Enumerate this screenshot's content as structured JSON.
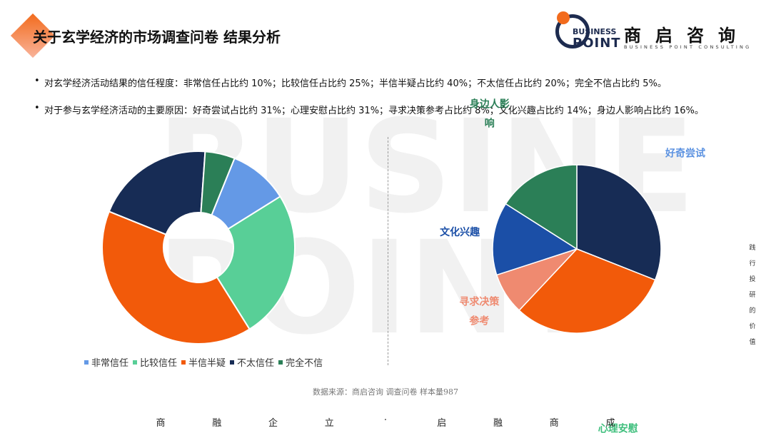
{
  "header": {
    "title": "关于玄学经济的市场调查问卷 结果分析"
  },
  "logo": {
    "business": "BUSINESS",
    "point": "POINT",
    "cn": "商启咨询",
    "en": "BUSINESS POINT CONSULTING"
  },
  "watermark": {
    "line1": "BUSINE",
    "line2": "POINT"
  },
  "bullets": [
    "对玄学经济活动结果的信任程度：非常信任占比约 10%；比较信任占比约 25%；半信半疑占比约 40%；不太信任占比约 20%；完全不信占比约 5%。",
    "对于参与玄学经济活动的主要原因：好奇尝试占比约 31%；心理安慰占比约 31%；寻求决策参考占比约 8%；文化兴趣占比约 14%；身边人影响占比约 16%。"
  ],
  "chart_data": [
    {
      "type": "pie",
      "variant": "donut",
      "title": "",
      "categories": [
        "非常信任",
        "比较信任",
        "半信半疑",
        "不太信任",
        "完全不信"
      ],
      "values": [
        10,
        25,
        40,
        20,
        5
      ],
      "colors": [
        "#6499e6",
        "#58cf97",
        "#f25a0a",
        "#172c55",
        "#2b7f57"
      ],
      "legend": "bottom"
    },
    {
      "type": "pie",
      "title": "",
      "categories": [
        "好奇尝试",
        "心理安慰",
        "寻求决策参考",
        "文化兴趣",
        "身边人影响"
      ],
      "labels": [
        "好奇尝试",
        "心理安慰",
        "寻求决策\n参考",
        "文化兴趣",
        "身边人影\n响"
      ],
      "values": [
        31,
        31,
        8,
        14,
        16
      ],
      "colors": [
        "#172c55",
        "#f25a0a",
        "#ef8a70",
        "#1b4fa7",
        "#2b7f57"
      ],
      "label_colors": [
        "#5d93e1",
        "#3fbf7d",
        "#ef8a70",
        "#1b4fa7",
        "#2b7f57"
      ]
    }
  ],
  "source": "数据来源：商启咨询 调查问卷 样本量987",
  "slogan": [
    "商",
    "融",
    "企",
    "立",
    "·",
    "启",
    "融",
    "商",
    "成"
  ],
  "side_text": [
    "践",
    "行",
    "投",
    "研",
    "的",
    "价",
    "值"
  ]
}
